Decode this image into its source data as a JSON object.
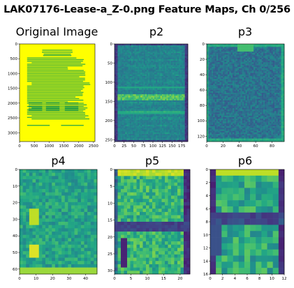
{
  "figure_title": "LAK07176-Lease-a_Z-0.png Feature Maps, Ch 0/256",
  "chart_data": [
    {
      "type": "heatmap",
      "title": "Original Image",
      "colormap": "document-on-yellow",
      "x_ticks": [
        "0",
        "500",
        "1000",
        "1500",
        "2000",
        "2500"
      ],
      "y_ticks": [
        "0",
        "500",
        "1000",
        "1500",
        "2000",
        "2500",
        "3000"
      ],
      "xlim": [
        0,
        2550
      ],
      "ylim": [
        3300,
        0
      ]
    },
    {
      "type": "heatmap",
      "title": "p2",
      "colormap": "viridis",
      "x_ticks": [
        "0",
        "25",
        "50",
        "75",
        "100",
        "125",
        "150",
        "175"
      ],
      "y_ticks": [
        "0",
        "50",
        "100",
        "150",
        "200",
        "250"
      ],
      "xlim": [
        0,
        191
      ],
      "ylim": [
        255,
        0
      ]
    },
    {
      "type": "heatmap",
      "title": "p3",
      "colormap": "viridis",
      "x_ticks": [
        "0",
        "20",
        "40",
        "60",
        "80"
      ],
      "y_ticks": [
        "0",
        "20",
        "40",
        "60",
        "80",
        "100",
        "120"
      ],
      "xlim": [
        0,
        95
      ],
      "ylim": [
        127,
        0
      ]
    },
    {
      "type": "heatmap",
      "title": "p4",
      "colormap": "viridis",
      "x_ticks": [
        "0",
        "10",
        "20",
        "30",
        "40"
      ],
      "y_ticks": [
        "0",
        "10",
        "20",
        "30",
        "40",
        "50",
        "60"
      ],
      "xlim": [
        0,
        47
      ],
      "ylim": [
        63,
        0
      ]
    },
    {
      "type": "heatmap",
      "title": "p5",
      "colormap": "viridis",
      "x_ticks": [
        "0",
        "5",
        "10",
        "15",
        "20"
      ],
      "y_ticks": [
        "0",
        "5",
        "10",
        "15",
        "20",
        "25",
        "30"
      ],
      "xlim": [
        0,
        23
      ],
      "ylim": [
        31,
        0
      ]
    },
    {
      "type": "heatmap",
      "title": "p6",
      "colormap": "viridis",
      "x_ticks": [
        "0",
        "2",
        "4",
        "6",
        "8",
        "10",
        "12"
      ],
      "y_ticks": [
        "0",
        "2",
        "4",
        "6",
        "8",
        "10",
        "12",
        "14",
        "16"
      ],
      "xlim": [
        0,
        12
      ],
      "ylim": [
        16,
        0
      ]
    }
  ]
}
